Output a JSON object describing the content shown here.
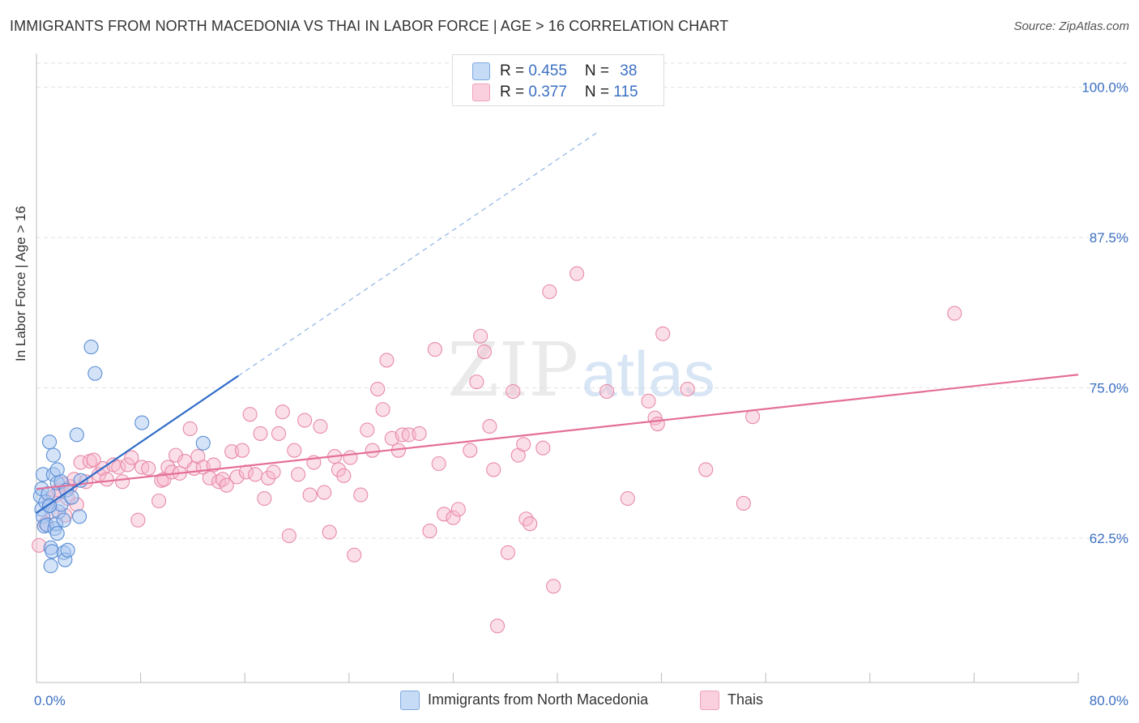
{
  "title": "IMMIGRANTS FROM NORTH MACEDONIA VS THAI IN LABOR FORCE | AGE > 16 CORRELATION CHART",
  "source": "Source: ZipAtlas.com",
  "watermark": {
    "zip": "ZIP",
    "atlas": "atlas"
  },
  "legend": {
    "rows": [
      {
        "r_label": "R = ",
        "r_value": "0.455",
        "n_label": "N = ",
        "n_value": "38",
        "color": "#a9c8f0"
      },
      {
        "r_label": "R = ",
        "r_value": "0.377",
        "n_label": "N = ",
        "n_value": "115",
        "color": "#f6b8cc"
      }
    ]
  },
  "bottom_legend": [
    {
      "label": "Immigrants from North Macedonia",
      "color": "#a9c8f0"
    },
    {
      "label": "Thais",
      "color": "#f6b8cc"
    }
  ],
  "colors": {
    "blue_fill": "#a9c8f0",
    "blue_stroke": "#5b8fd6",
    "blue_line": "#2f6cc9",
    "pink_fill": "#f6b8cc",
    "pink_stroke": "#e88aa8",
    "pink_line": "#e46f98",
    "tick_label": "#3b6fc2",
    "grid": "#e2e2e2"
  },
  "chart_data": {
    "type": "scatter",
    "title": "IMMIGRANTS FROM NORTH MACEDONIA VS THAI IN LABOR FORCE | AGE > 16 CORRELATION CHART",
    "xlabel": "",
    "ylabel": "In Labor Force | Age > 16",
    "xlim": [
      0,
      80
    ],
    "ylim": [
      50.5,
      102
    ],
    "x_tick_labels": [
      "0.0%",
      "80.0%"
    ],
    "y_ticks": [
      62.5,
      75.0,
      87.5,
      100.0
    ],
    "y_tick_labels": [
      "62.5%",
      "75.0%",
      "87.5%",
      "100.0%"
    ],
    "grid": "horizontal dashed",
    "legend_position": "top-center",
    "series": [
      {
        "name": "Immigrants from North Macedonia",
        "r": 0.455,
        "n": 38,
        "trend": {
          "x": [
            0,
            15.5
          ],
          "y": [
            64.6,
            76.0
          ],
          "dashed_to": [
            43,
            96.2
          ]
        },
        "points": [
          [
            0.3,
            66.0
          ],
          [
            0.4,
            64.9
          ],
          [
            0.5,
            64.3
          ],
          [
            0.6,
            63.5
          ],
          [
            0.4,
            66.6
          ],
          [
            0.5,
            67.8
          ],
          [
            0.7,
            65.5
          ],
          [
            0.8,
            63.6
          ],
          [
            0.9,
            66.2
          ],
          [
            1.0,
            65.2
          ],
          [
            1.0,
            70.5
          ],
          [
            1.1,
            61.7
          ],
          [
            1.2,
            61.4
          ],
          [
            1.1,
            60.2
          ],
          [
            1.3,
            69.4
          ],
          [
            1.3,
            67.8
          ],
          [
            1.4,
            63.3
          ],
          [
            1.5,
            63.7
          ],
          [
            1.6,
            62.9
          ],
          [
            1.6,
            67.1
          ],
          [
            1.6,
            68.2
          ],
          [
            1.7,
            64.7
          ],
          [
            1.9,
            65.3
          ],
          [
            1.9,
            67.2
          ],
          [
            2.1,
            64.0
          ],
          [
            2.1,
            61.3
          ],
          [
            2.2,
            60.7
          ],
          [
            2.3,
            66.5
          ],
          [
            2.4,
            61.5
          ],
          [
            2.7,
            65.9
          ],
          [
            3.1,
            71.1
          ],
          [
            3.3,
            64.3
          ],
          [
            3.4,
            67.3
          ],
          [
            4.2,
            78.4
          ],
          [
            4.5,
            76.2
          ],
          [
            8.1,
            72.1
          ],
          [
            12.8,
            70.4
          ],
          [
            1.0,
            65.2
          ]
        ]
      },
      {
        "name": "Thais",
        "r": 0.377,
        "n": 115,
        "trend": {
          "x": [
            0,
            80
          ],
          "y": [
            66.6,
            76.1
          ]
        },
        "points": [
          [
            0.2,
            61.9
          ],
          [
            0.7,
            63.7
          ],
          [
            1.0,
            65.5
          ],
          [
            1.2,
            64.7
          ],
          [
            1.4,
            66.0
          ],
          [
            1.7,
            66.5
          ],
          [
            2.0,
            67.0
          ],
          [
            2.2,
            64.4
          ],
          [
            2.4,
            65.8
          ],
          [
            2.6,
            66.8
          ],
          [
            2.9,
            67.4
          ],
          [
            3.1,
            65.3
          ],
          [
            3.4,
            68.8
          ],
          [
            3.8,
            67.2
          ],
          [
            4.1,
            68.9
          ],
          [
            4.4,
            69.0
          ],
          [
            4.8,
            67.8
          ],
          [
            5.1,
            68.3
          ],
          [
            5.4,
            67.4
          ],
          [
            5.9,
            68.6
          ],
          [
            6.3,
            68.4
          ],
          [
            6.6,
            67.2
          ],
          [
            7.0,
            68.6
          ],
          [
            7.3,
            69.2
          ],
          [
            7.8,
            64.0
          ],
          [
            8.1,
            68.4
          ],
          [
            8.6,
            68.3
          ],
          [
            9.4,
            65.6
          ],
          [
            9.6,
            67.3
          ],
          [
            9.8,
            67.4
          ],
          [
            10.1,
            68.4
          ],
          [
            10.4,
            68.0
          ],
          [
            10.7,
            69.4
          ],
          [
            11.0,
            67.9
          ],
          [
            11.4,
            68.9
          ],
          [
            11.8,
            71.6
          ],
          [
            12.1,
            68.3
          ],
          [
            12.4,
            69.3
          ],
          [
            12.8,
            68.4
          ],
          [
            13.3,
            67.5
          ],
          [
            13.6,
            68.6
          ],
          [
            14.0,
            67.2
          ],
          [
            14.3,
            67.4
          ],
          [
            14.6,
            66.9
          ],
          [
            15.0,
            69.7
          ],
          [
            15.4,
            67.6
          ],
          [
            15.8,
            69.8
          ],
          [
            16.1,
            68.0
          ],
          [
            16.4,
            72.8
          ],
          [
            16.8,
            67.8
          ],
          [
            17.2,
            71.2
          ],
          [
            17.5,
            65.8
          ],
          [
            17.8,
            67.5
          ],
          [
            18.2,
            68.0
          ],
          [
            18.6,
            71.2
          ],
          [
            18.9,
            73.0
          ],
          [
            19.4,
            62.7
          ],
          [
            19.8,
            69.8
          ],
          [
            20.1,
            67.8
          ],
          [
            20.6,
            72.3
          ],
          [
            21.0,
            66.1
          ],
          [
            21.3,
            68.8
          ],
          [
            21.8,
            71.8
          ],
          [
            22.1,
            66.3
          ],
          [
            22.5,
            63.0
          ],
          [
            22.9,
            69.3
          ],
          [
            23.2,
            68.2
          ],
          [
            23.6,
            67.7
          ],
          [
            24.1,
            69.2
          ],
          [
            24.4,
            61.1
          ],
          [
            24.9,
            66.1
          ],
          [
            25.4,
            71.5
          ],
          [
            25.8,
            69.8
          ],
          [
            26.2,
            74.9
          ],
          [
            26.6,
            73.2
          ],
          [
            26.9,
            77.3
          ],
          [
            27.3,
            70.8
          ],
          [
            27.8,
            69.8
          ],
          [
            28.1,
            71.1
          ],
          [
            28.6,
            71.1
          ],
          [
            29.4,
            71.2
          ],
          [
            30.2,
            63.1
          ],
          [
            30.6,
            78.2
          ],
          [
            30.9,
            68.7
          ],
          [
            31.3,
            64.5
          ],
          [
            32.0,
            64.2
          ],
          [
            32.4,
            64.9
          ],
          [
            33.3,
            69.8
          ],
          [
            33.8,
            75.5
          ],
          [
            34.1,
            79.3
          ],
          [
            34.4,
            78.0
          ],
          [
            34.8,
            71.8
          ],
          [
            35.1,
            68.2
          ],
          [
            35.4,
            55.2
          ],
          [
            36.2,
            61.3
          ],
          [
            36.6,
            74.7
          ],
          [
            37.0,
            69.4
          ],
          [
            37.4,
            70.3
          ],
          [
            37.6,
            64.1
          ],
          [
            37.9,
            63.7
          ],
          [
            38.9,
            70.0
          ],
          [
            39.4,
            83.0
          ],
          [
            39.7,
            58.5
          ],
          [
            41.5,
            84.5
          ],
          [
            43.8,
            74.7
          ],
          [
            45.4,
            65.8
          ],
          [
            47.0,
            73.9
          ],
          [
            47.5,
            72.5
          ],
          [
            47.7,
            72.0
          ],
          [
            48.1,
            79.5
          ],
          [
            50.0,
            74.9
          ],
          [
            51.4,
            68.2
          ],
          [
            54.3,
            65.4
          ],
          [
            55.0,
            72.6
          ],
          [
            70.5,
            81.2
          ]
        ]
      }
    ]
  }
}
